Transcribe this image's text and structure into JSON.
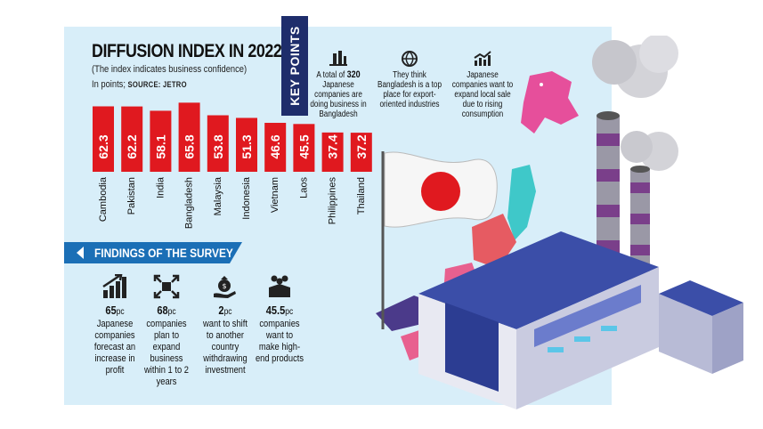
{
  "chart_data": {
    "type": "bar",
    "title": "DIFFUSION INDEX IN 2022",
    "subtitle": "(The index indicates business confidence)",
    "unit_prefix": "In points;",
    "source": "SOURCE: JETRO",
    "categories": [
      "Cambodia",
      "Pakistan",
      "India",
      "Bangladesh",
      "Malaysia",
      "Indonesia",
      "Vietnam",
      "Laos",
      "Philippines",
      "Thailand"
    ],
    "values": [
      62.3,
      62.2,
      58.1,
      65.8,
      53.8,
      51.3,
      46.6,
      45.5,
      37.4,
      37.2
    ],
    "value_labels": [
      "62.3",
      "62.2",
      "58.1",
      "65.8",
      "53.8",
      "51.3",
      "46.6",
      "45.5",
      "37.4",
      "37.2"
    ],
    "ylim": [
      0,
      70
    ],
    "xlabel": "",
    "ylabel": ""
  },
  "colors": {
    "bar": "#e0191f",
    "panel": "#d8eef9",
    "navy": "#1e2d6b",
    "findings_banner": "#1b6fb6"
  },
  "key_points": {
    "label": "KEY POINTS",
    "items": [
      {
        "icon": "building-icon",
        "pre": "A total of ",
        "highlight": "320",
        "post": " Japanese companies are doing business in Bangladesh"
      },
      {
        "icon": "globe-icon",
        "pre": "",
        "highlight": "",
        "post": "They think Bangladesh is a top place for export-oriented industries"
      },
      {
        "icon": "growth-chart-icon",
        "pre": "",
        "highlight": "",
        "post": "Japanese companies want to expand local sale due to rising consumption"
      }
    ]
  },
  "findings": {
    "title": "FINDINGS OF THE SURVEY",
    "items": [
      {
        "icon": "bar-growth-icon",
        "big": "65",
        "unit": "pc",
        "text": "Japanese companies forecast an increase in profit"
      },
      {
        "icon": "expand-icon",
        "big": "68",
        "unit": "pc",
        "text": "companies plan to expand business within 1 to 2 years"
      },
      {
        "icon": "money-bag-hand-icon",
        "big": "2",
        "unit": "pc",
        "text": "want to shift to another country withdrawing investment"
      },
      {
        "icon": "people-box-icon",
        "big": "45.5",
        "unit": "pc",
        "text": "companies want to make high-end products"
      }
    ]
  }
}
